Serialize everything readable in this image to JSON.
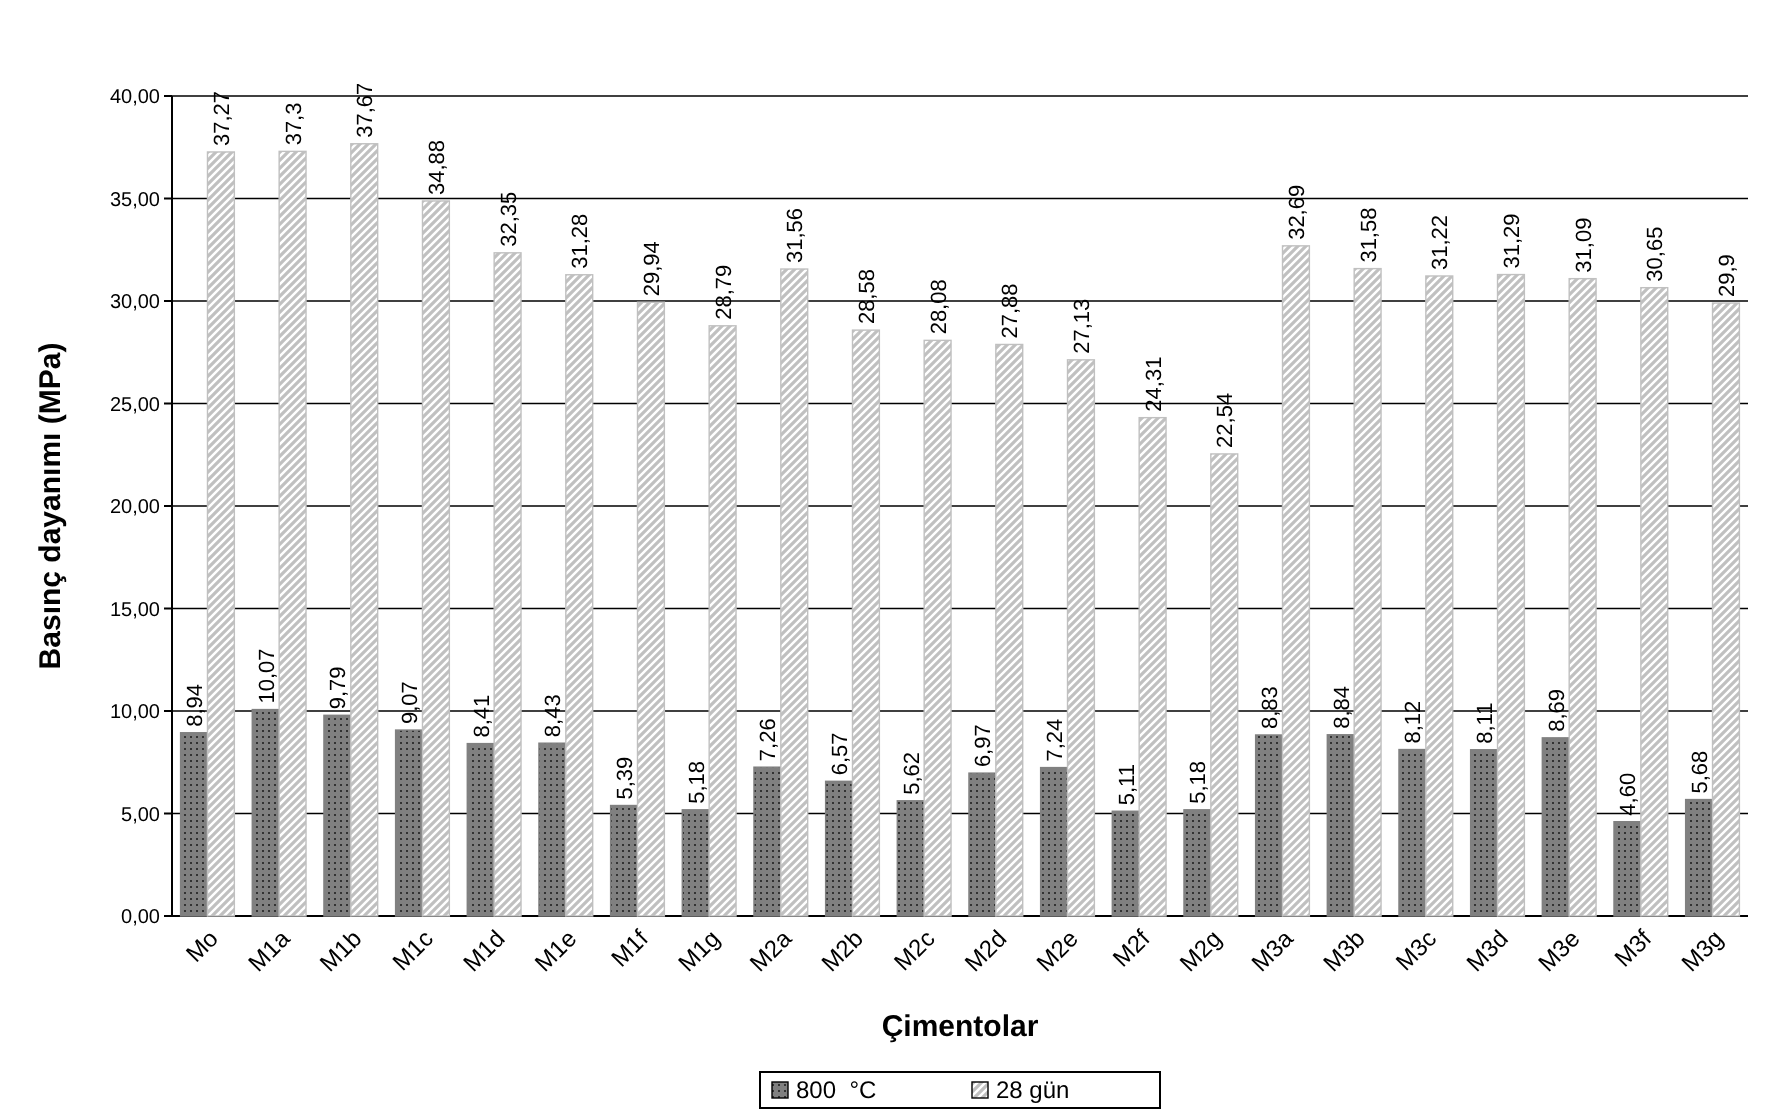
{
  "chart_data": {
    "type": "bar",
    "xlabel": "Çimentolar",
    "ylabel": "Basınç dayanımı (MPa)",
    "categories": [
      "Mo",
      "M1a",
      "M1b",
      "M1c",
      "M1d",
      "M1e",
      "M1f",
      "M1g",
      "M2a",
      "M2b",
      "M2c",
      "M2d",
      "M2e",
      "M2f",
      "M2g",
      "M3a",
      "M3b",
      "M3c",
      "M3d",
      "M3e",
      "M3f",
      "M3g"
    ],
    "series": [
      {
        "name": "800  °C",
        "color": "#808080",
        "values": [
          8.94,
          10.07,
          9.79,
          9.07,
          8.41,
          8.43,
          5.39,
          5.18,
          7.26,
          6.57,
          5.62,
          6.97,
          7.24,
          5.11,
          5.18,
          8.83,
          8.84,
          8.12,
          8.11,
          8.69,
          4.6,
          5.68
        ],
        "value_labels": [
          "8,94",
          "10,07",
          "9,79",
          "9,07",
          "8,41",
          "8,43",
          "5,39",
          "5,18",
          "7,26",
          "6,57",
          "5,62",
          "6,97",
          "7,24",
          "5,11",
          "5,18",
          "8,83",
          "8,84",
          "8,12",
          "8,11",
          "8,69",
          "4,60",
          "5,68"
        ]
      },
      {
        "name": "28 gün",
        "color": "#c0c0c0",
        "values": [
          37.27,
          37.3,
          37.67,
          34.88,
          32.35,
          31.28,
          29.94,
          28.79,
          31.56,
          28.58,
          28.08,
          27.88,
          27.13,
          24.31,
          22.54,
          32.69,
          31.58,
          31.22,
          31.29,
          31.09,
          30.65,
          29.9
        ],
        "value_labels": [
          "37,27",
          "37,3",
          "37,67",
          "34,88",
          "32,35",
          "31,28",
          "29,94",
          "28,79",
          "31,56",
          "28,58",
          "28,08",
          "27,88",
          "27,13",
          "24,31",
          "22,54",
          "32,69",
          "31,58",
          "31,22",
          "31,29",
          "31,09",
          "30,65",
          "29,9"
        ]
      }
    ],
    "ylim": [
      0,
      40
    ],
    "yticks": [
      {
        "value": 0,
        "label": "0,00"
      },
      {
        "value": 5,
        "label": "5,00"
      },
      {
        "value": 10,
        "label": "10,00"
      },
      {
        "value": 15,
        "label": "15,00"
      },
      {
        "value": 20,
        "label": "20,00"
      },
      {
        "value": 25,
        "label": "25,00"
      },
      {
        "value": 30,
        "label": "30,00"
      },
      {
        "value": 35,
        "label": "35,00"
      },
      {
        "value": 40,
        "label": "40,00"
      }
    ],
    "grid": "y",
    "legend": "bottom"
  }
}
